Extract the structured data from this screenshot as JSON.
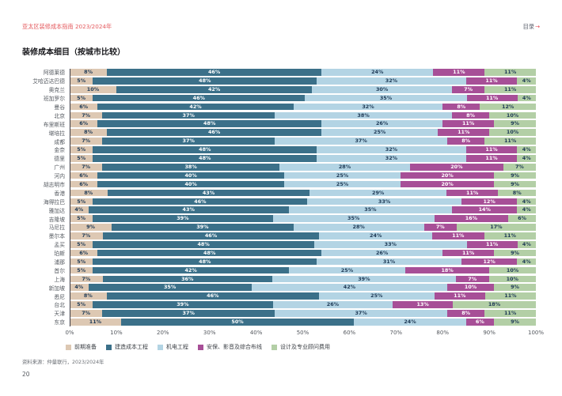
{
  "header": {
    "guide_title": "亚太区装修成本指南 2023/2024年",
    "toc_label": "目录",
    "toc_arrow": "→"
  },
  "page": {
    "title": "装修成本细目（按城市比较）",
    "source": "资料来源：仲量联行，2023/2024年",
    "page_number": "20"
  },
  "chart_data": {
    "type": "bar",
    "orientation": "horizontal-stacked",
    "value_suffix": "%",
    "xlim": [
      0,
      100
    ],
    "x_ticks": [
      "0%",
      "10%",
      "20%",
      "30%",
      "40%",
      "50%",
      "60%",
      "70%",
      "80%",
      "90%",
      "100%"
    ],
    "legend_position": "bottom",
    "categories": [
      "阿德莱德",
      "艾哈迈达巴德",
      "奥克兰",
      "班加罗尔",
      "曼谷",
      "北京",
      "布里斯班",
      "堪培拉",
      "成都",
      "金奈",
      "德里",
      "广州",
      "河内",
      "胡志明市",
      "香港",
      "海得拉巴",
      "雅加达",
      "吉隆坡",
      "马尼拉",
      "墨尔本",
      "孟买",
      "珀斯",
      "浦那",
      "首尔",
      "上海",
      "新加坡",
      "悉尼",
      "台北",
      "天津",
      "东京"
    ],
    "series": [
      {
        "name": "前期准备",
        "color": "#ddc8b3",
        "label_color": "#1e3a56",
        "values": [
          8,
          5,
          10,
          5,
          6,
          7,
          6,
          8,
          7,
          5,
          5,
          7,
          6,
          6,
          8,
          5,
          4,
          5,
          9,
          7,
          5,
          6,
          5,
          5,
          7,
          4,
          8,
          5,
          7,
          11
        ]
      },
      {
        "name": "建造成本工程",
        "color": "#3b7089",
        "label_color": "#ffffff",
        "values": [
          46,
          48,
          42,
          46,
          42,
          37,
          48,
          46,
          37,
          48,
          48,
          38,
          40,
          40,
          43,
          46,
          43,
          39,
          39,
          46,
          48,
          48,
          48,
          42,
          36,
          35,
          46,
          39,
          37,
          50
        ]
      },
      {
        "name": "机电工程",
        "color": "#b3d4e4",
        "label_color": "#1e3a56",
        "values": [
          24,
          32,
          30,
          35,
          32,
          38,
          26,
          25,
          37,
          32,
          32,
          28,
          25,
          25,
          29,
          33,
          35,
          35,
          28,
          24,
          33,
          26,
          31,
          25,
          39,
          42,
          25,
          26,
          37,
          24
        ]
      },
      {
        "name": "安保、影音及综合布线",
        "color": "#a74f97",
        "label_color": "#ffffff",
        "values": [
          11,
          11,
          7,
          11,
          8,
          8,
          11,
          11,
          8,
          11,
          11,
          20,
          20,
          20,
          11,
          12,
          14,
          16,
          7,
          11,
          11,
          11,
          12,
          18,
          7,
          10,
          11,
          13,
          8,
          6
        ]
      },
      {
        "name": "设计及专业顾问费用",
        "color": "#b3cfa6",
        "label_color": "#1e3a56",
        "values": [
          11,
          4,
          11,
          4,
          12,
          10,
          9,
          10,
          11,
          4,
          4,
          7,
          9,
          9,
          8,
          4,
          4,
          6,
          17,
          11,
          4,
          9,
          4,
          10,
          10,
          9,
          11,
          18,
          11,
          9
        ]
      }
    ]
  }
}
